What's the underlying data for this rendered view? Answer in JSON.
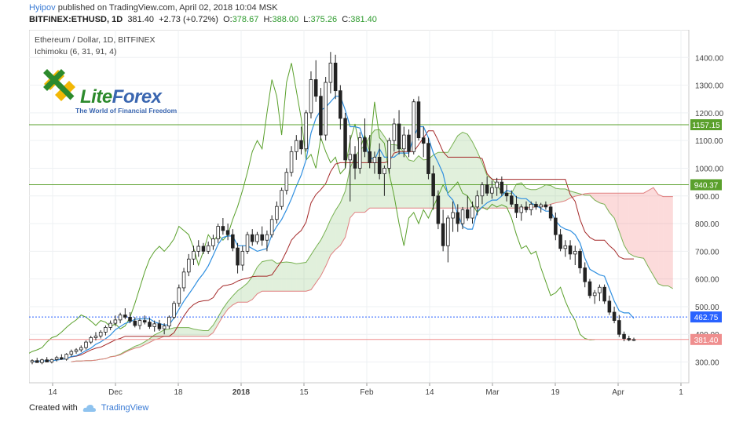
{
  "header": {
    "user": "Hyipov",
    "published_text": "published on TradingView.com, April 02, 2018 10:04 MSK"
  },
  "quote": {
    "symbol": "BITFINEX:ETHUSD, 1D",
    "last": "381.40",
    "change": "+2.73 (+0.72%)",
    "o_label": "O:",
    "o": "378.67",
    "h_label": "H:",
    "h": "388.00",
    "l_label": "L:",
    "l": "375.26",
    "c_label": "C:",
    "c": "381.40"
  },
  "footer": {
    "created_with": "Created with",
    "brand": "TradingView"
  },
  "watermark": {
    "logo_icon": "liteforex-logo-icon",
    "title_lite": "Lite",
    "title_forex": "Forex",
    "subtitle": "The World of Financial Freedom"
  },
  "chart_data": {
    "type": "candlestick",
    "title": "Ethereum / Dollar, 1D, BITFINEX",
    "indicator_label": "Ichimoku (6, 31, 91, 4)",
    "y_tick_labels": [
      "300.00",
      "400.00",
      "500.00",
      "600.00",
      "700.00",
      "800.00",
      "900.00",
      "1000.00",
      "1100.00",
      "1200.00",
      "1300.00",
      "1400.00"
    ],
    "ylim": [
      225,
      1500
    ],
    "x_tick_labels": [
      "14",
      "Dec",
      "18",
      "2018",
      "15",
      "Feb",
      "14",
      "Mar",
      "19",
      "Apr",
      "1"
    ],
    "horizontal_levels": [
      {
        "value": 1157.15,
        "label": "1157.15",
        "color": "#5aa02c"
      },
      {
        "value": 940.37,
        "label": "940.37",
        "color": "#5aa02c"
      },
      {
        "value": 462.75,
        "label": "462.75",
        "color": "#2962ff"
      },
      {
        "value": 381.4,
        "label": "381.40",
        "color": "#ef8e8e"
      }
    ],
    "candles": [
      [
        300,
        310,
        292,
        305
      ],
      [
        305,
        315,
        298,
        298
      ],
      [
        298,
        312,
        292,
        308
      ],
      [
        308,
        318,
        300,
        300
      ],
      [
        300,
        312,
        295,
        309
      ],
      [
        309,
        322,
        302,
        316
      ],
      [
        316,
        328,
        308,
        310
      ],
      [
        310,
        332,
        305,
        328
      ],
      [
        328,
        345,
        320,
        338
      ],
      [
        338,
        350,
        330,
        344
      ],
      [
        344,
        360,
        336,
        352
      ],
      [
        352,
        378,
        345,
        372
      ],
      [
        372,
        395,
        365,
        388
      ],
      [
        388,
        408,
        378,
        394
      ],
      [
        394,
        415,
        385,
        408
      ],
      [
        408,
        432,
        396,
        425
      ],
      [
        425,
        450,
        415,
        440
      ],
      [
        440,
        468,
        430,
        452
      ],
      [
        452,
        478,
        440,
        470
      ],
      [
        470,
        494,
        455,
        462
      ],
      [
        462,
        480,
        440,
        448
      ],
      [
        448,
        462,
        425,
        432
      ],
      [
        432,
        458,
        418,
        450
      ],
      [
        450,
        468,
        436,
        444
      ],
      [
        444,
        460,
        420,
        428
      ],
      [
        428,
        450,
        410,
        438
      ],
      [
        438,
        452,
        412,
        420
      ],
      [
        420,
        440,
        400,
        430
      ],
      [
        430,
        468,
        420,
        462
      ],
      [
        462,
        520,
        455,
        512
      ],
      [
        512,
        580,
        500,
        568
      ],
      [
        568,
        640,
        555,
        625
      ],
      [
        625,
        690,
        610,
        672
      ],
      [
        672,
        720,
        650,
        700
      ],
      [
        700,
        740,
        680,
        718
      ],
      [
        718,
        730,
        690,
        700
      ],
      [
        700,
        735,
        690,
        720
      ],
      [
        720,
        760,
        705,
        745
      ],
      [
        745,
        800,
        730,
        790
      ],
      [
        790,
        820,
        760,
        775
      ],
      [
        775,
        800,
        740,
        760
      ],
      [
        760,
        780,
        700,
        712
      ],
      [
        712,
        730,
        620,
        650
      ],
      [
        650,
        720,
        630,
        700
      ],
      [
        700,
        770,
        690,
        760
      ],
      [
        760,
        780,
        720,
        735
      ],
      [
        735,
        770,
        725,
        760
      ],
      [
        760,
        790,
        720,
        740
      ],
      [
        740,
        775,
        700,
        760
      ],
      [
        760,
        830,
        750,
        815
      ],
      [
        815,
        880,
        800,
        862
      ],
      [
        862,
        930,
        850,
        920
      ],
      [
        920,
        1000,
        905,
        985
      ],
      [
        985,
        1080,
        970,
        1060
      ],
      [
        1060,
        1120,
        1030,
        1100
      ],
      [
        1100,
        1150,
        1050,
        1070
      ],
      [
        1070,
        1210,
        1060,
        1200
      ],
      [
        1200,
        1350,
        1180,
        1320
      ],
      [
        1320,
        1390,
        1240,
        1260
      ],
      [
        1260,
        1290,
        1100,
        1120
      ],
      [
        1120,
        1330,
        1100,
        1310
      ],
      [
        1310,
        1420,
        1270,
        1380
      ],
      [
        1380,
        1410,
        1250,
        1280
      ],
      [
        1280,
        1300,
        1140,
        1180
      ],
      [
        1180,
        1200,
        1000,
        1030
      ],
      [
        1030,
        1120,
        880,
        1050
      ],
      [
        1050,
        1080,
        960,
        1000
      ],
      [
        1000,
        1130,
        980,
        1110
      ],
      [
        1110,
        1180,
        1040,
        1060
      ],
      [
        1060,
        1120,
        1000,
        1020
      ],
      [
        1020,
        1060,
        980,
        1040
      ],
      [
        1040,
        1090,
        960,
        980
      ],
      [
        980,
        1010,
        900,
        1000
      ],
      [
        1000,
        1110,
        980,
        1100
      ],
      [
        1100,
        1180,
        1060,
        1160
      ],
      [
        1160,
        1210,
        1050,
        1070
      ],
      [
        1070,
        1150,
        1040,
        1120
      ],
      [
        1120,
        1140,
        1040,
        1060
      ],
      [
        1060,
        1250,
        1050,
        1240
      ],
      [
        1240,
        1260,
        1100,
        1110
      ],
      [
        1110,
        1150,
        1040,
        1090
      ],
      [
        1090,
        1110,
        960,
        980
      ],
      [
        980,
        1010,
        850,
        900
      ],
      [
        900,
        920,
        780,
        800
      ],
      [
        800,
        850,
        700,
        720
      ],
      [
        720,
        830,
        660,
        820
      ],
      [
        820,
        880,
        770,
        840
      ],
      [
        840,
        870,
        770,
        800
      ],
      [
        800,
        860,
        780,
        850
      ],
      [
        850,
        900,
        810,
        820
      ],
      [
        820,
        880,
        800,
        860
      ],
      [
        860,
        920,
        830,
        900
      ],
      [
        900,
        950,
        870,
        940
      ],
      [
        940,
        970,
        900,
        910
      ],
      [
        910,
        955,
        890,
        930
      ],
      [
        930,
        965,
        900,
        950
      ],
      [
        950,
        970,
        900,
        910
      ],
      [
        910,
        940,
        880,
        900
      ],
      [
        900,
        920,
        860,
        870
      ],
      [
        870,
        900,
        820,
        840
      ],
      [
        840,
        870,
        810,
        860
      ],
      [
        860,
        880,
        840,
        850
      ],
      [
        850,
        880,
        830,
        870
      ],
      [
        870,
        880,
        850,
        860
      ],
      [
        860,
        875,
        840,
        868
      ],
      [
        868,
        880,
        850,
        860
      ],
      [
        860,
        870,
        810,
        820
      ],
      [
        820,
        840,
        740,
        760
      ],
      [
        760,
        780,
        700,
        710
      ],
      [
        710,
        740,
        680,
        720
      ],
      [
        720,
        740,
        670,
        690
      ],
      [
        690,
        720,
        650,
        700
      ],
      [
        700,
        710,
        620,
        640
      ],
      [
        640,
        660,
        570,
        590
      ],
      [
        590,
        600,
        530,
        540
      ],
      [
        540,
        560,
        510,
        550
      ],
      [
        550,
        580,
        520,
        570
      ],
      [
        570,
        580,
        510,
        520
      ],
      [
        520,
        540,
        470,
        480
      ],
      [
        480,
        500,
        440,
        450
      ],
      [
        450,
        470,
        390,
        400
      ],
      [
        400,
        410,
        375,
        385
      ],
      [
        385,
        395,
        375,
        380
      ],
      [
        378,
        388,
        375,
        381
      ]
    ],
    "series": [
      {
        "name": "Conversion Line",
        "color": "#2f8fe0"
      },
      {
        "name": "Base Line",
        "color": "#a52a2a"
      },
      {
        "name": "Lagging Span",
        "color": "#5aa02c"
      },
      {
        "name": "Leading Span A",
        "color": "#5aa02c"
      },
      {
        "name": "Leading Span B",
        "color": "#d9534f"
      }
    ],
    "grid": true
  }
}
